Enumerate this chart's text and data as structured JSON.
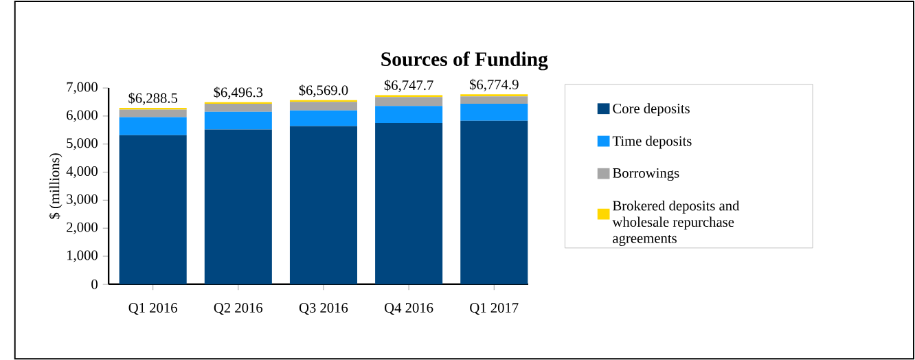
{
  "chart_data": {
    "type": "bar",
    "stacked": true,
    "title": "Sources of Funding",
    "ylabel": "$ (millions)",
    "categories": [
      "Q1 2016",
      "Q2 2016",
      "Q3 2016",
      "Q4 2016",
      "Q1 2017"
    ],
    "series": [
      {
        "name": "Core deposits",
        "color": "#00467f",
        "values": [
          5320,
          5520,
          5640,
          5750,
          5830
        ]
      },
      {
        "name": "Time deposits",
        "color": "#0a96ff",
        "values": [
          640,
          630,
          560,
          610,
          610
        ]
      },
      {
        "name": "Borrowings",
        "color": "#a6a6a6",
        "values": [
          270,
          290,
          305,
          320,
          260
        ]
      },
      {
        "name": "Brokered deposits and wholesale repurchase agreements",
        "color": "#ffd700",
        "values": [
          58.5,
          56.3,
          64,
          67.7,
          74.9
        ]
      }
    ],
    "totals": [
      "$6,288.5",
      "$6,496.3",
      "$6,569.0",
      "$6,747.7",
      "$6,774.9"
    ],
    "ylim": [
      0,
      7000
    ],
    "yticks": [
      0,
      {
        "value": 1000,
        "label": "1,000"
      },
      {
        "value": 2000,
        "label": "2,000"
      },
      {
        "value": 3000,
        "label": "3,000"
      },
      {
        "value": 4000,
        "label": "4,000"
      },
      {
        "value": 5000,
        "label": "5,000"
      },
      {
        "value": 6000,
        "label": "6,000"
      },
      {
        "value": 7000,
        "label": "7,000"
      }
    ],
    "legend": "right"
  }
}
